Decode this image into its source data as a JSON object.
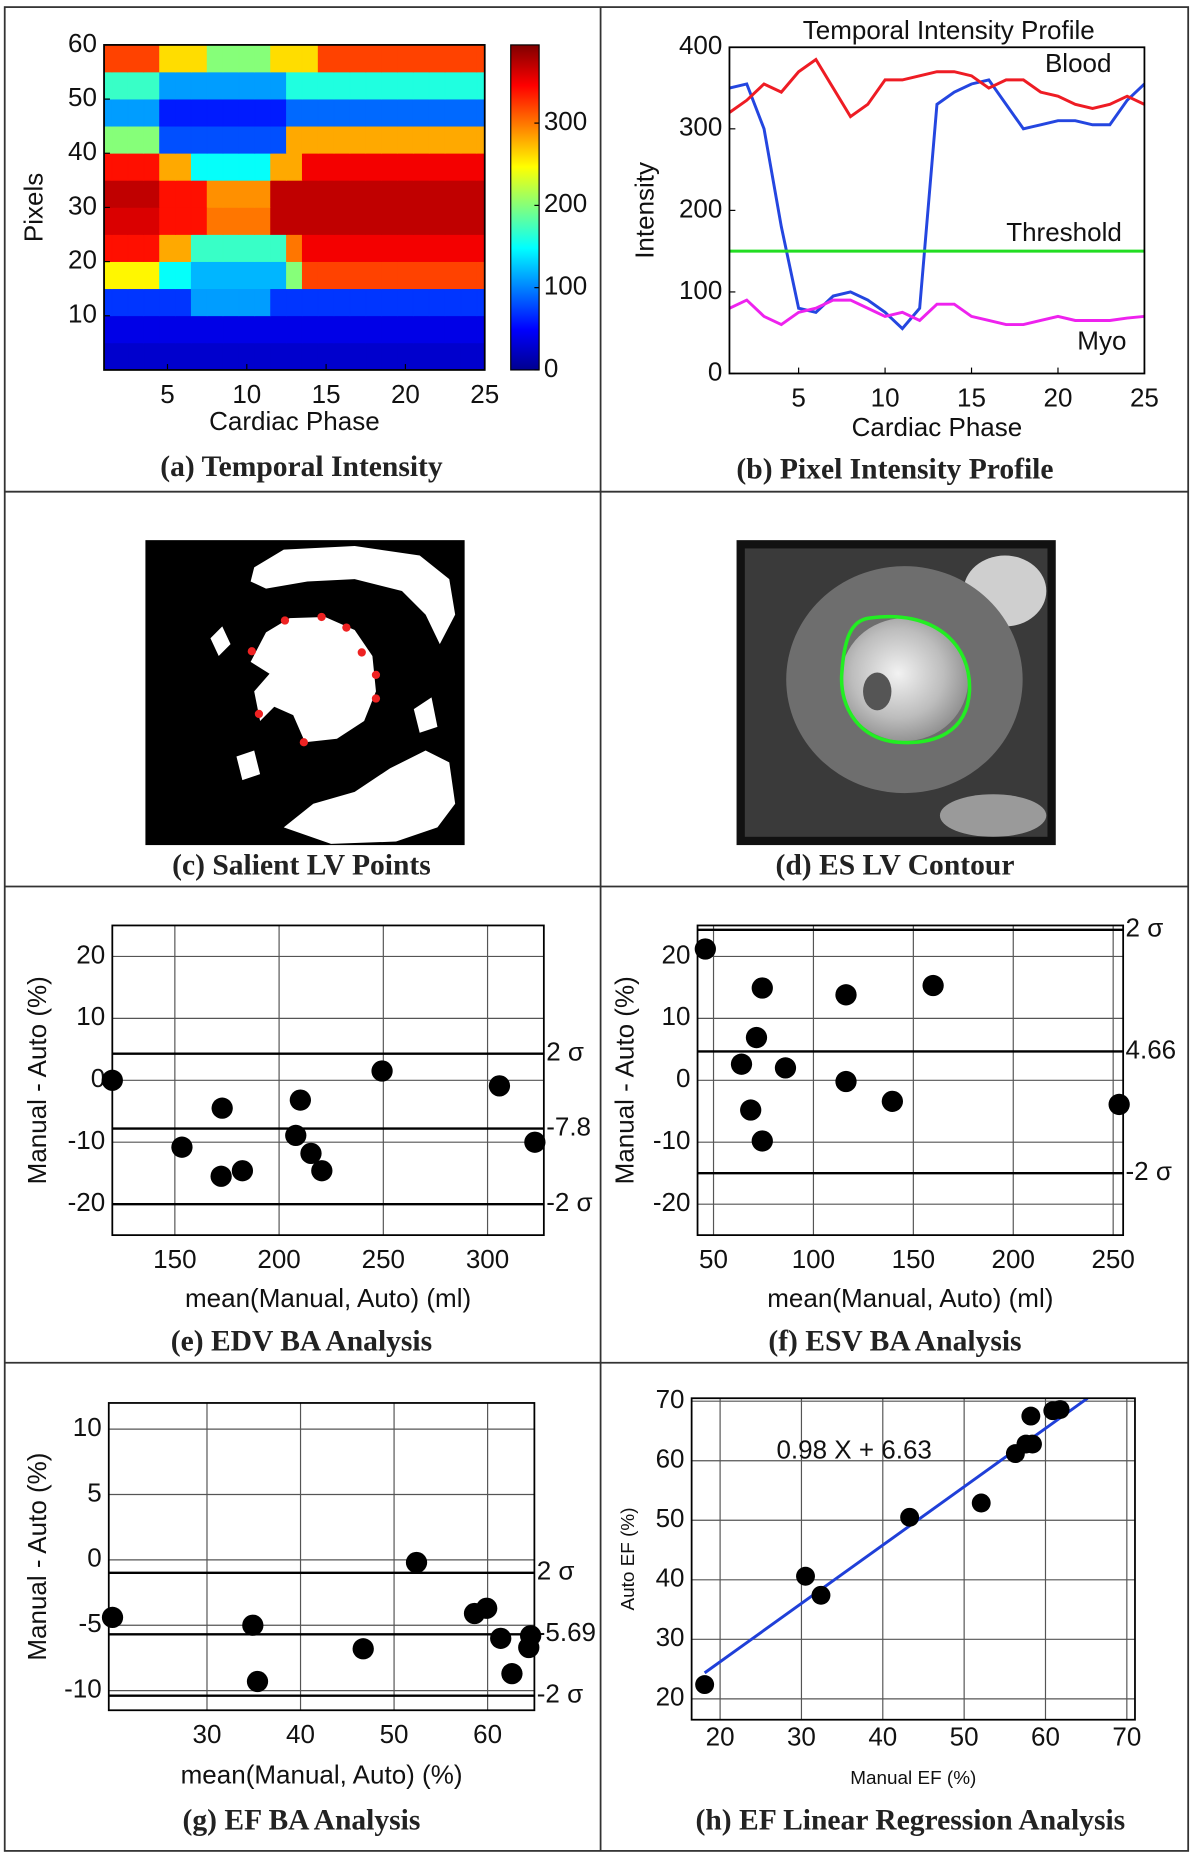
{
  "chart_data": [
    {
      "type": "heatmap",
      "caption": "(a) Temporal Intensity",
      "x_label": "Cardiac Phase",
      "y_label": "Pixels",
      "x": [
        1,
        2,
        3,
        4,
        5,
        6,
        7,
        8,
        9,
        10,
        11,
        12,
        13,
        14,
        15,
        16,
        17,
        18,
        19,
        20,
        21,
        22,
        23,
        24,
        25
      ],
      "y": [
        2.5,
        7.5,
        12.5,
        17.5,
        22.5,
        27.5,
        32.5,
        37.5,
        42.5,
        47.5,
        52.5,
        57.5
      ],
      "z": [
        [
          30,
          30,
          30,
          30,
          30,
          30,
          30,
          30,
          30,
          30,
          30,
          30,
          30,
          30,
          30,
          30,
          30,
          30,
          30,
          30,
          30,
          30,
          30,
          30,
          30
        ],
        [
          40,
          40,
          40,
          40,
          40,
          40,
          40,
          40,
          40,
          40,
          40,
          40,
          40,
          40,
          40,
          40,
          40,
          40,
          40,
          40,
          40,
          40,
          40,
          40,
          40
        ],
        [
          70,
          70,
          70,
          70,
          70,
          70,
          110,
          110,
          110,
          110,
          110,
          70,
          70,
          70,
          70,
          70,
          70,
          70,
          70,
          70,
          70,
          70,
          70,
          70,
          70
        ],
        [
          250,
          250,
          250,
          250,
          150,
          150,
          120,
          120,
          120,
          120,
          120,
          120,
          200,
          320,
          320,
          320,
          320,
          320,
          320,
          320,
          320,
          320,
          320,
          320,
          320
        ],
        [
          340,
          340,
          340,
          340,
          280,
          280,
          170,
          170,
          170,
          170,
          170,
          170,
          300,
          350,
          350,
          350,
          350,
          350,
          350,
          350,
          350,
          350,
          350,
          350,
          350
        ],
        [
          360,
          360,
          360,
          360,
          340,
          340,
          340,
          300,
          300,
          300,
          300,
          370,
          370,
          370,
          370,
          370,
          370,
          370,
          370,
          370,
          370,
          370,
          370,
          370,
          370
        ],
        [
          370,
          370,
          370,
          370,
          340,
          340,
          340,
          290,
          290,
          290,
          290,
          370,
          370,
          370,
          370,
          370,
          370,
          370,
          370,
          370,
          370,
          370,
          370,
          370,
          370
        ],
        [
          340,
          340,
          340,
          340,
          280,
          280,
          150,
          150,
          150,
          150,
          150,
          280,
          280,
          350,
          350,
          350,
          350,
          350,
          350,
          350,
          350,
          350,
          350,
          350,
          350
        ],
        [
          200,
          200,
          200,
          200,
          80,
          80,
          80,
          80,
          80,
          80,
          80,
          80,
          280,
          280,
          280,
          280,
          280,
          280,
          280,
          280,
          280,
          280,
          280,
          280,
          280
        ],
        [
          110,
          110,
          110,
          110,
          60,
          60,
          60,
          60,
          60,
          60,
          60,
          60,
          90,
          90,
          90,
          90,
          90,
          90,
          90,
          90,
          90,
          90,
          90,
          90,
          90
        ],
        [
          170,
          170,
          170,
          170,
          110,
          110,
          110,
          110,
          110,
          110,
          110,
          110,
          160,
          160,
          160,
          160,
          160,
          160,
          160,
          160,
          160,
          160,
          160,
          160,
          160
        ],
        [
          320,
          320,
          320,
          320,
          260,
          260,
          260,
          200,
          200,
          200,
          200,
          260,
          260,
          260,
          320,
          320,
          320,
          320,
          320,
          320,
          320,
          320,
          320,
          320,
          320
        ]
      ],
      "xlim": [
        1,
        25
      ],
      "ylim": [
        0,
        60
      ],
      "xticks": [
        5,
        10,
        15,
        20,
        25
      ],
      "yticks": [
        10,
        20,
        30,
        40,
        50,
        60
      ],
      "zlim": [
        0,
        395
      ],
      "zticks": [
        0,
        100,
        200,
        300
      ],
      "colormap": "jet",
      "grid": false
    },
    {
      "type": "line",
      "caption": "(b) Pixel Intensity Profile",
      "title": "Temporal Intensity Profile",
      "x_label": "Cardiac Phase",
      "y_label": "Intensity",
      "x": [
        1,
        2,
        3,
        4,
        5,
        6,
        7,
        8,
        9,
        10,
        11,
        12,
        13,
        14,
        15,
        16,
        17,
        18,
        19,
        20,
        21,
        22,
        23,
        24,
        25
      ],
      "series": [
        {
          "color": "#2446e0",
          "values": [
            350,
            355,
            300,
            180,
            80,
            75,
            95,
            100,
            90,
            75,
            55,
            80,
            330,
            345,
            355,
            360,
            330,
            300,
            305,
            310,
            310,
            305,
            305,
            335,
            355
          ]
        },
        {
          "name": "Blood",
          "color": "#ee1c24",
          "values": [
            320,
            335,
            355,
            345,
            370,
            385,
            350,
            315,
            330,
            360,
            360,
            365,
            370,
            370,
            365,
            350,
            360,
            360,
            345,
            340,
            330,
            325,
            330,
            340,
            330
          ]
        },
        {
          "name": "Threshold",
          "color": "#22dd22",
          "values": [
            150,
            150,
            150,
            150,
            150,
            150,
            150,
            150,
            150,
            150,
            150,
            150,
            150,
            150,
            150,
            150,
            150,
            150,
            150,
            150,
            150,
            150,
            150,
            150,
            150
          ]
        },
        {
          "name": "Myo",
          "color": "#ee22ee",
          "values": [
            80,
            90,
            70,
            60,
            75,
            80,
            90,
            90,
            80,
            70,
            75,
            65,
            85,
            85,
            70,
            65,
            60,
            60,
            65,
            70,
            65,
            65,
            65,
            68,
            70
          ]
        }
      ],
      "xlim": [
        1,
        25
      ],
      "ylim": [
        0,
        400
      ],
      "xticks": [
        5,
        10,
        15,
        20,
        25
      ],
      "yticks": [
        0,
        100,
        200,
        300,
        400
      ],
      "grid": false
    },
    {
      "type": "image",
      "caption": "(c) Salient LV Points"
    },
    {
      "type": "image",
      "caption": "(d) ES LV Contour"
    },
    {
      "type": "scatter",
      "caption": "(e) EDV BA Analysis",
      "x_label": "mean(Manual, Auto) (ml)",
      "y_label": "Manual - Auto (%)",
      "x": [
        120,
        153.4,
        172.7,
        172.2,
        182.4,
        210.2,
        208,
        215.3,
        220.5,
        249.4,
        305.7,
        322.7
      ],
      "y": [
        0,
        -10.8,
        -4.5,
        -15.5,
        -14.6,
        -3.2,
        -8.9,
        -11.8,
        -14.6,
        1.5,
        -0.9,
        -10
      ],
      "color": "#000000",
      "reference_lines": [
        {
          "value": 4.3,
          "label": "2 σ"
        },
        {
          "value": -7.8,
          "label": "-7.8"
        },
        {
          "value": -20,
          "label": "-2 σ"
        }
      ],
      "xlim": [
        120,
        327
      ],
      "ylim": [
        -25,
        25
      ],
      "xticks": [
        150,
        200,
        250,
        300
      ],
      "yticks": [
        -20,
        -10,
        0,
        10,
        20
      ],
      "grid": true
    },
    {
      "type": "scatter",
      "caption": "(f) ESV BA Analysis",
      "x_label": "mean(Manual, Auto) (ml)",
      "y_label": "Manual - Auto (%)",
      "x": [
        45.9,
        74.4,
        71.5,
        64,
        68.6,
        74.4,
        86,
        116.3,
        116.3,
        139.5,
        159.9,
        253
      ],
      "y": [
        21.2,
        14.9,
        6.9,
        2.6,
        -4.8,
        -9.8,
        2,
        13.8,
        -0.2,
        -3.4,
        15.3,
        -3.9
      ],
      "color": "#000000",
      "reference_lines": [
        {
          "value": 24.3,
          "label": "2 σ"
        },
        {
          "value": 4.66,
          "label": "4.66"
        },
        {
          "value": -15,
          "label": "-2 σ"
        }
      ],
      "xlim": [
        42,
        255
      ],
      "ylim": [
        -25,
        25
      ],
      "xticks": [
        50,
        100,
        150,
        200,
        250
      ],
      "yticks": [
        -20,
        -10,
        0,
        10,
        20
      ],
      "grid": true
    },
    {
      "type": "scatter",
      "caption": "(g) EF BA Analysis",
      "x_label": "mean(Manual, Auto) (%)",
      "y_label": "Manual - Auto (%)",
      "x": [
        19.9,
        34.9,
        35.4,
        46.7,
        52.4,
        58.6,
        59.9,
        61.4,
        62.6,
        64.4,
        64.6
      ],
      "y": [
        -4.4,
        -5,
        -9.3,
        -6.8,
        -0.2,
        -4.1,
        -3.7,
        -6,
        -8.7,
        -6.7,
        -5.8
      ],
      "color": "#000000",
      "reference_lines": [
        {
          "value": -0.99,
          "label": "2 σ"
        },
        {
          "value": -5.69,
          "label": "-5.69"
        },
        {
          "value": -10.39,
          "label": "-2 σ"
        }
      ],
      "xlim": [
        19.5,
        65
      ],
      "ylim": [
        -11.5,
        12
      ],
      "xticks": [
        30,
        40,
        50,
        60
      ],
      "yticks": [
        -10,
        -5,
        0,
        5,
        10
      ],
      "grid": true
    },
    {
      "type": "scatter",
      "caption": "(h) EF Linear Regression Analysis",
      "x_label": "Manual EF (%)",
      "y_label": "Auto EF (%)",
      "x": [
        18.1,
        30.5,
        32.4,
        43.3,
        52.1,
        56.3,
        57.6,
        58.2,
        58.4,
        60.9,
        61.8
      ],
      "y": [
        22.4,
        40.6,
        37.4,
        50.5,
        52.9,
        61.2,
        62.8,
        67.5,
        62.8,
        68.4,
        68.6
      ],
      "color": "#000000",
      "fit": {
        "slope": 0.98,
        "intercept": 6.63,
        "label": "0.98 X + 6.63",
        "color": "#1f3fd8"
      },
      "xlim": [
        16.5,
        71
      ],
      "ylim": [
        16.5,
        70.5
      ],
      "xticks": [
        20,
        30,
        40,
        50,
        60,
        70
      ],
      "yticks": [
        20,
        30,
        40,
        50,
        60,
        70
      ],
      "grid": true
    }
  ]
}
